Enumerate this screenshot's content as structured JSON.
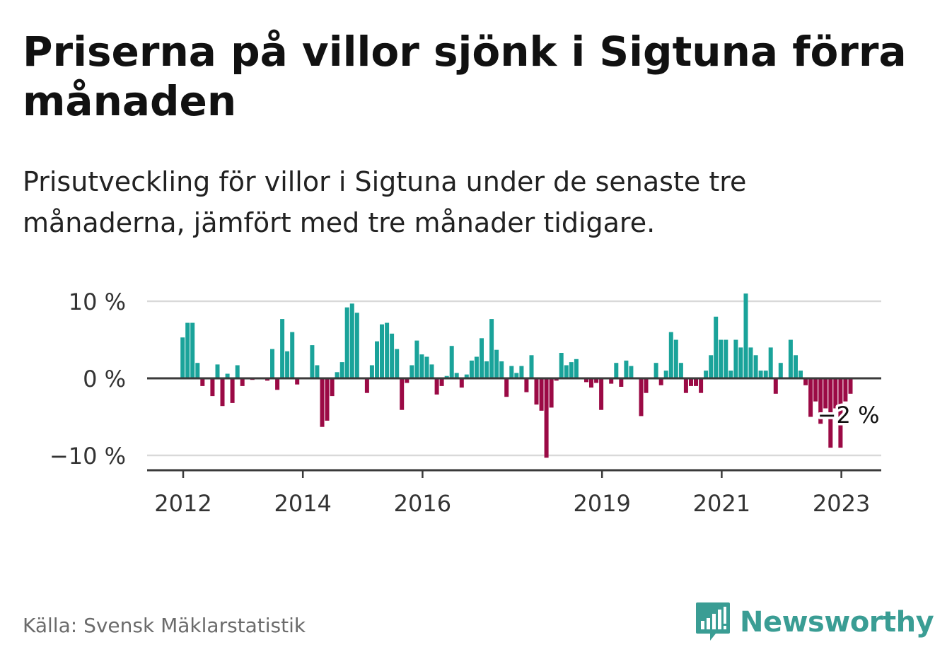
{
  "title": "Priserna på villor sjönk i Sigtuna förra månaden",
  "subtitle": "Prisutveckling för villor i Sigtuna under de senaste tre månaderna, jämfört med tre månader tidigare.",
  "source": "Källa: Svensk Mäklarstatistik",
  "brand": {
    "name": "Newsworthy",
    "icon": "newsworthy-logo-icon"
  },
  "colors": {
    "positive": "#1aa39a",
    "negative": "#9b0a45",
    "axis": "#333333",
    "grid": "#d9d9d9",
    "brand": "#3a9d94"
  },
  "chart_data": {
    "type": "bar",
    "ylabel": "",
    "xlabel": "",
    "ylim": [
      -12,
      11
    ],
    "y_ticks": [
      10,
      0,
      -10
    ],
    "y_tick_labels": [
      "10 %",
      "0 %",
      "−10 %"
    ],
    "x_ticks": [
      2012,
      2014,
      2016,
      2019,
      2021,
      2023
    ],
    "x_tick_labels": [
      "2012",
      "2014",
      "2016",
      "2019",
      "2021",
      "2023"
    ],
    "x_start": 2011.99,
    "x_step": 0.0833,
    "last_value_label": "−2 %",
    "grid": true,
    "values": [
      5.3,
      7.2,
      7.2,
      2.0,
      -1.0,
      0,
      -2.3,
      1.8,
      -3.6,
      0.6,
      -3.2,
      1.7,
      -1.0,
      0,
      -0.2,
      0,
      0,
      -0.3,
      3.8,
      -1.5,
      7.7,
      3.5,
      6.0,
      -0.8,
      0,
      0,
      4.3,
      1.7,
      -6.3,
      -5.5,
      -2.3,
      0.8,
      2.1,
      9.2,
      9.7,
      8.5,
      0,
      -1.9,
      1.7,
      4.8,
      7.0,
      7.2,
      5.8,
      3.8,
      -4.1,
      -0.6,
      1.7,
      4.9,
      3.1,
      2.8,
      1.8,
      -2.1,
      -1.0,
      0.3,
      4.2,
      0.7,
      -1.2,
      0.5,
      2.3,
      2.8,
      5.2,
      2.2,
      7.7,
      3.7,
      2.2,
      -2.4,
      1.6,
      0.7,
      1.6,
      -1.8,
      3.0,
      -3.4,
      -4.2,
      -10.3,
      -3.8,
      -0.3,
      3.3,
      1.7,
      2.1,
      2.5,
      0,
      -0.5,
      -1.2,
      -0.6,
      -4.1,
      0,
      -0.7,
      2.0,
      -1.1,
      2.3,
      1.6,
      0,
      -4.9,
      -1.9,
      0,
      2.0,
      -0.9,
      1.0,
      6.0,
      5.0,
      2.0,
      -1.9,
      -1.0,
      -1.0,
      -1.9,
      1.0,
      3.0,
      8.0,
      5.0,
      5.0,
      1.0,
      5.0,
      4.0,
      11.0,
      4.0,
      3.0,
      1.0,
      1.0,
      4.0,
      -2.0,
      2.0,
      0,
      5.0,
      3.0,
      1.0,
      -0.9,
      -5.0,
      -3.0,
      -5.9,
      -3.9,
      -9.0,
      -3.9,
      -9.0,
      -3.0,
      -2.0
    ]
  }
}
